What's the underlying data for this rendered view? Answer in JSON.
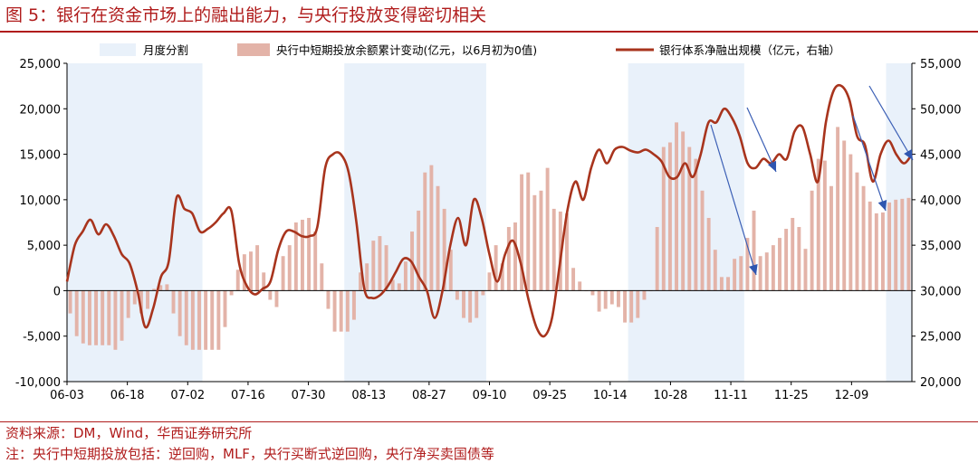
{
  "header": {
    "title": "图 5：银行在资金市场上的融出能力，与央行投放变得密切相关"
  },
  "footer": {
    "source": "资料来源：DM，Wind，华西证券研究所",
    "note": "注：央行中短期投放包括：逆回购，MLF，央行买断式逆回购，央行净买卖国债等"
  },
  "chart_data": {
    "type": "bar",
    "title": "",
    "legend": [
      "月度分割",
      "央行中短期投放余额累计变动(亿元，以6月初为0值)",
      "银行体系净融出规模（亿元，右轴）"
    ],
    "legend_placement": "top",
    "x_tick_labels": [
      "06-03",
      "06-18",
      "07-02",
      "07-16",
      "07-30",
      "08-13",
      "08-27",
      "09-10",
      "09-25",
      "10-14",
      "10-28",
      "11-11",
      "11-25",
      "12-09"
    ],
    "y_left": {
      "min": -10000,
      "max": 25000,
      "ticks": [
        "-10,000",
        "-5,000",
        "0",
        "5,000",
        "10,000",
        "15,000",
        "20,000",
        "25,000"
      ]
    },
    "y_right": {
      "min": 20000,
      "max": 55000,
      "ticks": [
        "20,000",
        "25,000",
        "30,000",
        "35,000",
        "40,000",
        "45,000",
        "50,000",
        "55,000"
      ]
    },
    "month_shading": [
      {
        "month": "June",
        "from_day": 0,
        "to_day": 21
      },
      {
        "month": "August",
        "from_day": 43,
        "to_day": 65
      },
      {
        "month": "October",
        "from_day": 87,
        "to_day": 105
      },
      {
        "month": "December",
        "from_day": 127,
        "to_day": 137
      }
    ],
    "series": [
      {
        "name": "央行中短期投放余额累计变动(亿元，以6月初为0值)",
        "kind": "bar",
        "axis": "left",
        "color": "#e3b3a8",
        "values": [
          -2500,
          -5000,
          -5800,
          -6000,
          -6000,
          -6000,
          -6000,
          -6500,
          -5500,
          -3000,
          -1500,
          -2500,
          -2000,
          200,
          600,
          700,
          -2500,
          -5000,
          -6000,
          -6500,
          -6500,
          -6500,
          -6500,
          -6500,
          -4000,
          -500,
          2300,
          4000,
          4300,
          5000,
          2000,
          -1000,
          -1800,
          3800,
          5000,
          7500,
          7800,
          8000,
          6500,
          3000,
          -2000,
          -4500,
          -4500,
          -4500,
          -3200,
          2000,
          3000,
          5500,
          6000,
          5000,
          1200,
          800,
          3200,
          6500,
          8800,
          13000,
          13800,
          11500,
          9000,
          4500,
          -1000,
          -3000,
          -3500,
          -3000,
          -500,
          2000,
          5000,
          3000,
          7000,
          7500,
          12800,
          13000,
          10500,
          11000,
          13500,
          9000,
          8700,
          8500,
          2500,
          1000,
          0,
          -500,
          -2300,
          -2000,
          -1500,
          -1800,
          -3500,
          -3500,
          -3000,
          -1000,
          0,
          7000,
          15800,
          16300,
          18500,
          17500,
          15800,
          14500,
          11000,
          8000,
          4500,
          1500,
          1500,
          3500,
          3800,
          5800,
          8800,
          3800,
          4200,
          5000,
          5800,
          6800,
          8000,
          7000,
          4600,
          11000,
          14500,
          14300,
          11500,
          18000,
          16500,
          15000,
          13000,
          11500,
          9800,
          8500,
          8600,
          9700,
          10000,
          10100,
          10200
        ]
      },
      {
        "name": "银行体系净融出规模（亿元，右轴）",
        "kind": "line",
        "axis": "right",
        "color": "#a8341d",
        "values": [
          31000,
          35000,
          36500,
          37800,
          36200,
          37300,
          36000,
          34000,
          33000,
          30000,
          26000,
          28000,
          31500,
          33200,
          40200,
          39000,
          38500,
          36500,
          36800,
          37500,
          38500,
          38800,
          33000,
          30500,
          29600,
          30200,
          31000,
          34500,
          36500,
          36500,
          36000,
          36000,
          37000,
          43500,
          45000,
          45000,
          43000,
          37500,
          30200,
          29200,
          29500,
          30500,
          32000,
          33500,
          33200,
          31500,
          30000,
          27000,
          30000,
          35000,
          38000,
          35000,
          40000,
          38000,
          34000,
          31000,
          34000,
          35500,
          33000,
          29000,
          26000,
          25000,
          27000,
          33000,
          39000,
          42000,
          40000,
          43500,
          45500,
          44000,
          45500,
          45800,
          45400,
          45200,
          45500,
          45000,
          44200,
          42500,
          42500,
          44000,
          42500,
          45000,
          48500,
          48500,
          50000,
          49000,
          47000,
          44000,
          43500,
          44500,
          44000,
          45000,
          44500,
          47500,
          48000,
          45000,
          42000,
          48500,
          52000,
          52500,
          51000,
          47000,
          46000,
          42000,
          45000,
          46500,
          45000,
          44000,
          45000
        ]
      }
    ],
    "annotations": [
      "arrow",
      "arrow",
      "arrow",
      "arrow"
    ]
  }
}
